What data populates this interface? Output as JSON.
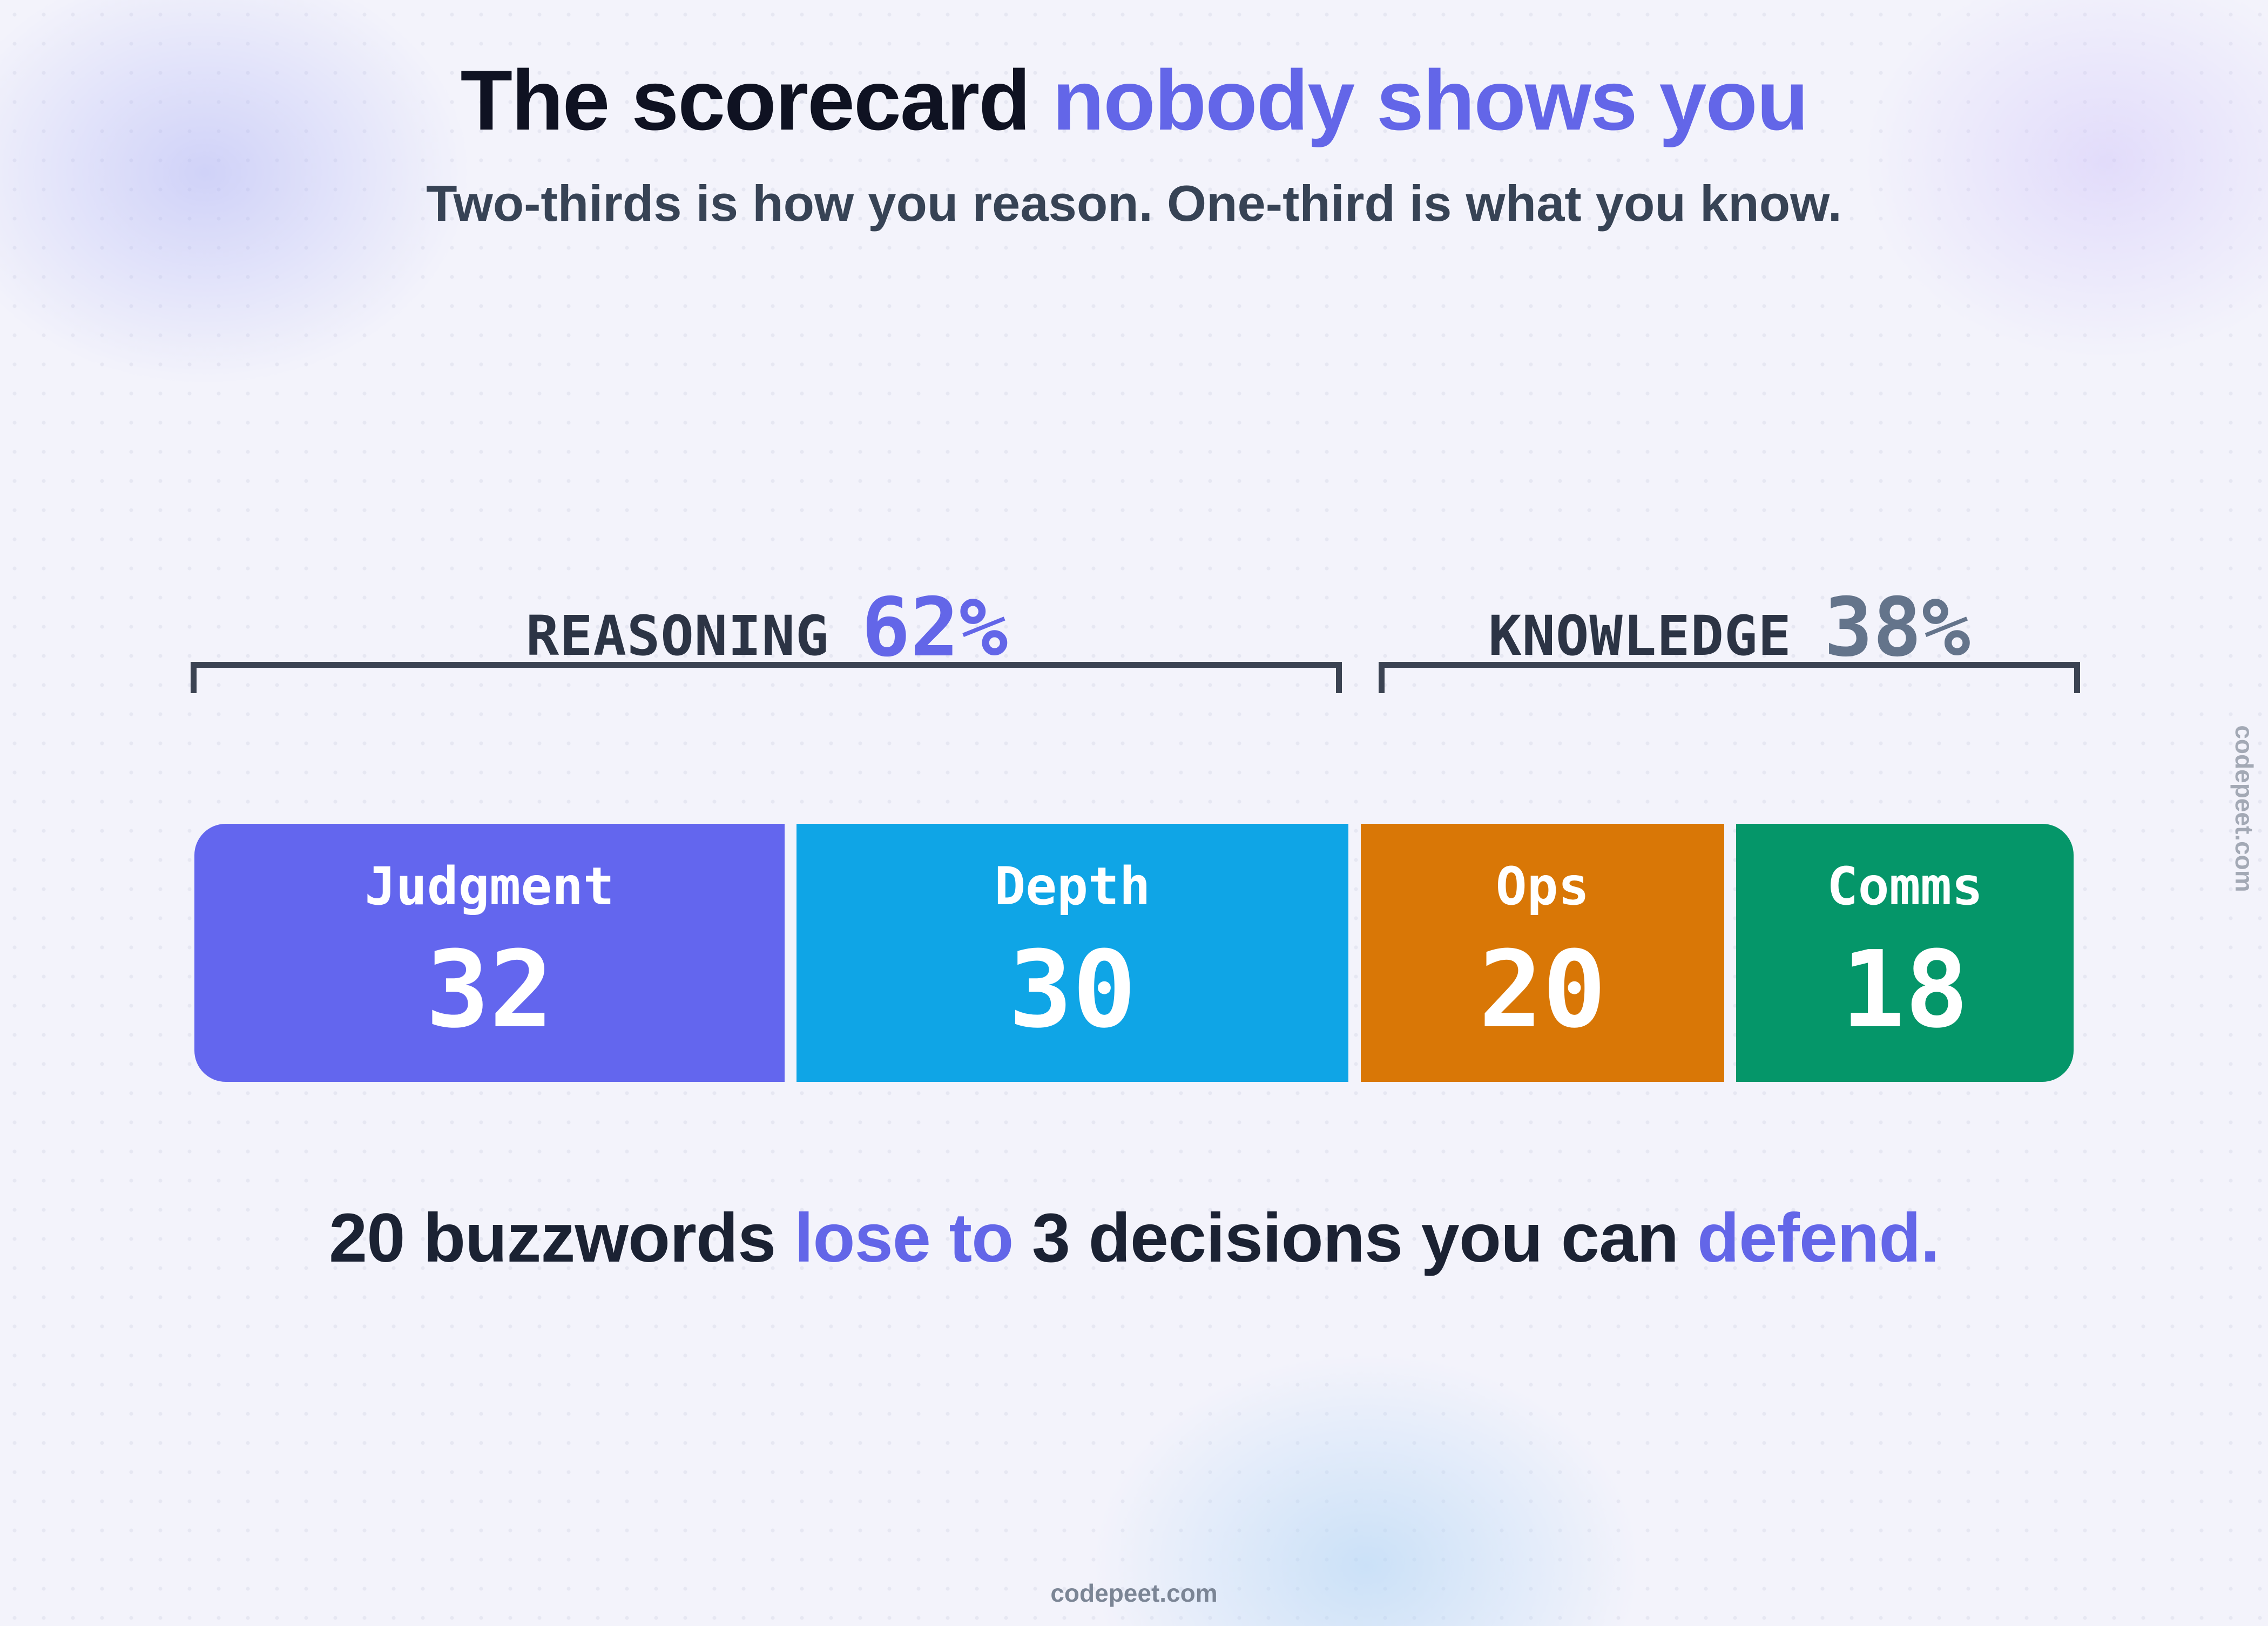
{
  "title": {
    "main": "The scorecard",
    "accent": "nobody shows you"
  },
  "subtitle": "Two-thirds is how you reason. One-third is what you know.",
  "groups": [
    {
      "name": "REASONING",
      "percent": "62%"
    },
    {
      "name": "KNOWLEDGE",
      "percent": "38%"
    }
  ],
  "cards": [
    {
      "label": "Judgment",
      "value": "32"
    },
    {
      "label": "Depth",
      "value": "30"
    },
    {
      "label": "Ops",
      "value": "20"
    },
    {
      "label": "Comms",
      "value": "18"
    }
  ],
  "tagline": {
    "part1": "20 buzzwords",
    "part2": "lose to",
    "part3": "3 decisions you can",
    "part4": "defend."
  },
  "brand": {
    "footer": "codepeet.com",
    "side": "codepeet.com"
  },
  "colors": {
    "accent": "#6366e8",
    "judgment": "#6366ee",
    "depth": "#0fa5e6",
    "ops": "#d97706",
    "comms": "#059669",
    "knowledge_percent": "#64748b"
  },
  "chart_data": {
    "type": "bar",
    "orientation": "horizontal-stacked",
    "categories": [
      "Judgment",
      "Depth",
      "Ops",
      "Comms"
    ],
    "values": [
      32,
      30,
      20,
      18
    ],
    "groups": [
      {
        "name": "REASONING",
        "percent": 62,
        "members": [
          "Judgment",
          "Depth"
        ]
      },
      {
        "name": "KNOWLEDGE",
        "percent": 38,
        "members": [
          "Ops",
          "Comms"
        ]
      }
    ],
    "title": "The scorecard nobody shows you",
    "subtitle": "Two-thirds is how you reason. One-third is what you know.",
    "total": 100
  }
}
